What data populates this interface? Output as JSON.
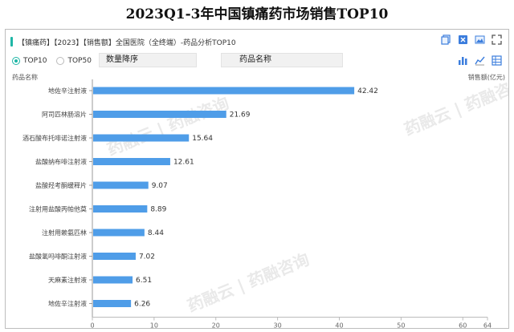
{
  "page": {
    "title": "2023Q1-3年中国镇痛药市场销售TOP10"
  },
  "toolbar": {
    "title": "【镇痛药】【2023】【销售额】全国医院（全终端）-药品分析TOP10"
  },
  "controls": {
    "radio_top10": "TOP10",
    "radio_top50": "TOP50",
    "selected": "TOP10",
    "sort_select": "数量降序",
    "name_select": "药品名称"
  },
  "icons": {
    "top": [
      "copy-icon",
      "excel-icon",
      "image-icon",
      "fullscreen-icon"
    ],
    "side": [
      "bar-chart-icon",
      "line-chart-icon",
      "grid-icon"
    ]
  },
  "watermark": "药融云 | 药融咨询",
  "chart_data": {
    "type": "bar",
    "orientation": "horizontal",
    "ylabel": "药品名称",
    "xlabel": "销售额(亿元)",
    "categories": [
      "地佐辛注射液",
      "阿司匹林肠溶片",
      "酒石酸布托啡诺注射液",
      "盐酸纳布啡注射液",
      "盐酸羟考酮缓释片",
      "注射用盐酸丙帕他莫",
      "注射用赖氨匹林",
      "盐酸氢吗啡酮注射液",
      "天麻素注射液",
      "地佐辛注射液"
    ],
    "values": [
      42.42,
      21.69,
      15.64,
      12.61,
      9.07,
      8.89,
      8.44,
      7.02,
      6.51,
      6.26
    ],
    "xlim": [
      0,
      64
    ],
    "xticks": [
      0,
      10,
      20,
      30,
      40,
      50,
      60,
      64
    ],
    "bar_color": "#4f9de8",
    "grid": false
  }
}
